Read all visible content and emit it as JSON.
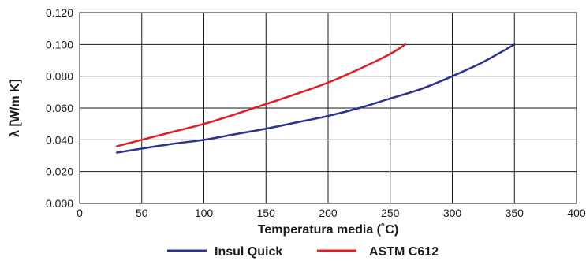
{
  "chart_data": {
    "type": "line",
    "xlabel": "Temperatura media (˚C)",
    "ylabel": "λ [W/m K]",
    "xlim": [
      0,
      400
    ],
    "ylim": [
      0,
      0.12
    ],
    "x_ticks": [
      "0",
      "50",
      "100",
      "150",
      "200",
      "250",
      "300",
      "350",
      "400"
    ],
    "y_ticks": [
      "0.000",
      "0.020",
      "0.040",
      "0.060",
      "0.080",
      "0.100",
      "0.120"
    ],
    "grid": true,
    "legend_position": "bottom",
    "series": [
      {
        "name": "Insul Quick",
        "color": "#2e3192",
        "x": [
          30,
          50,
          75,
          100,
          125,
          150,
          175,
          200,
          225,
          250,
          275,
          300,
          325,
          350
        ],
        "y": [
          0.032,
          0.0345,
          0.0375,
          0.04,
          0.0435,
          0.047,
          0.051,
          0.055,
          0.06,
          0.066,
          0.072,
          0.08,
          0.089,
          0.1
        ]
      },
      {
        "name": "ASTM C612",
        "color": "#e31b23",
        "x": [
          30,
          50,
          75,
          100,
          125,
          150,
          175,
          200,
          225,
          250,
          262
        ],
        "y": [
          0.036,
          0.04,
          0.045,
          0.05,
          0.056,
          0.0625,
          0.069,
          0.076,
          0.0845,
          0.094,
          0.1
        ]
      }
    ]
  }
}
